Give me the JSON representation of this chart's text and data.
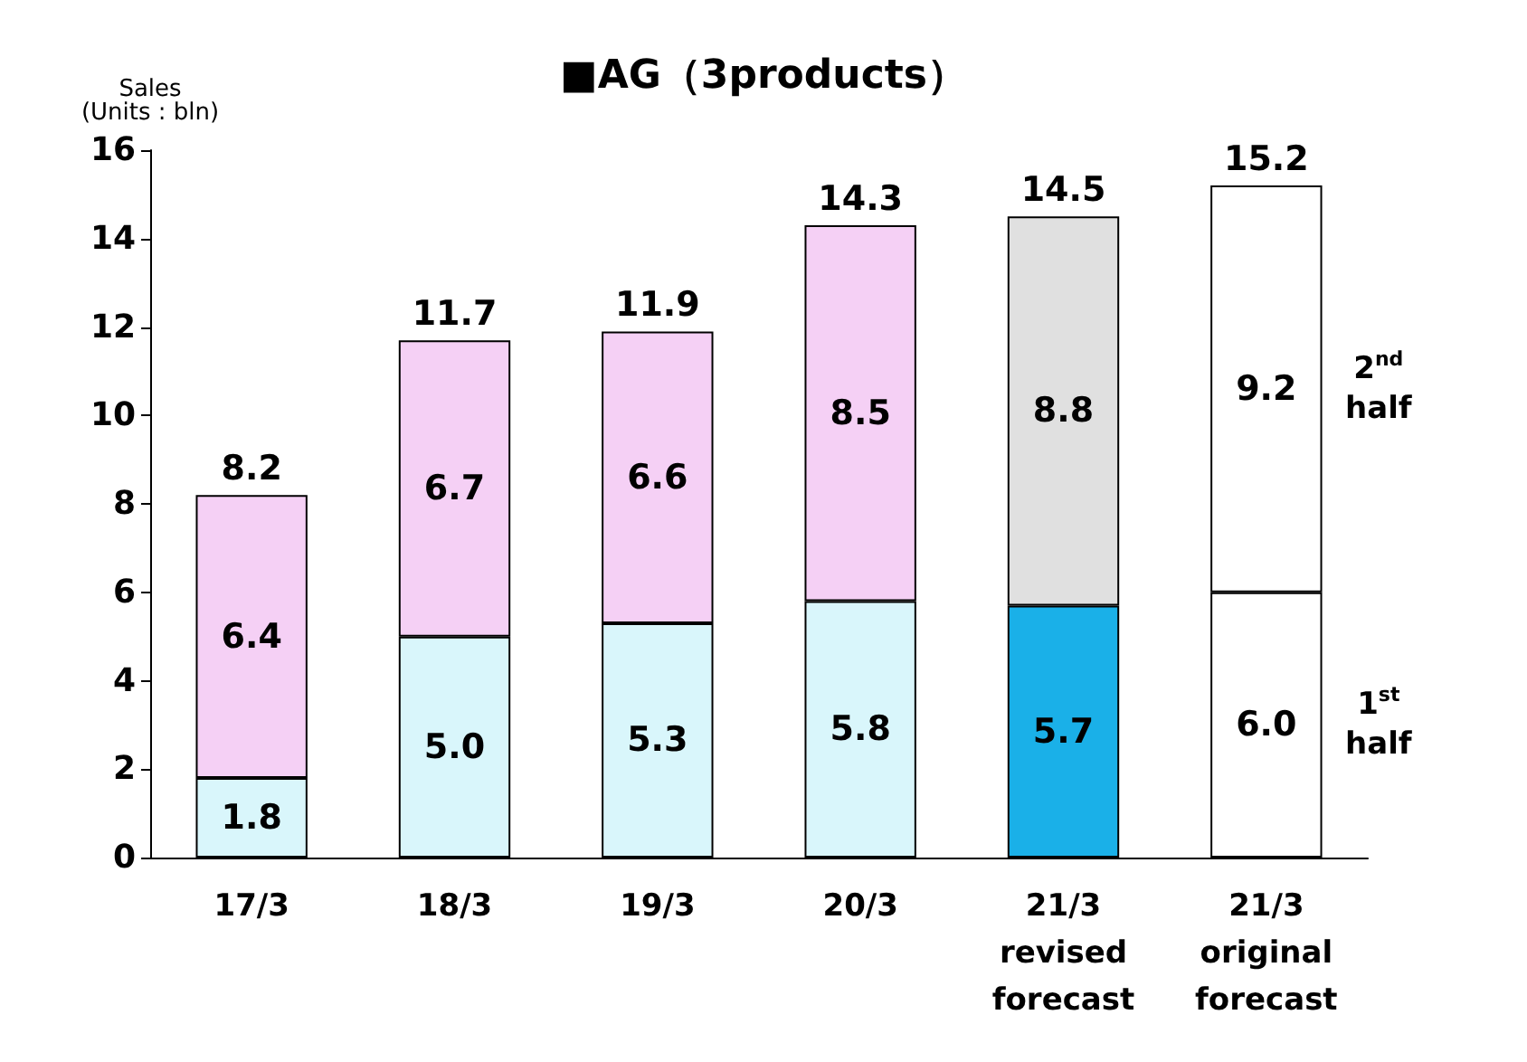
{
  "chart_data": {
    "type": "bar",
    "stacked": true,
    "title": "■AG（3products）",
    "ylabel": "Sales\n(Units : bln)",
    "categories": [
      "17/3",
      "18/3",
      "19/3",
      "20/3",
      "21/3\nrevised\nforecast",
      "21/3\noriginal\nforecast"
    ],
    "series": [
      {
        "name": "1$^{st}$\nhalf",
        "colors": [
          "#d9f6fb",
          "#d9f6fb",
          "#d9f6fb",
          "#d9f6fb",
          "#1ab0e8",
          "#ffffff"
        ],
        "values": [
          1.8,
          5.0,
          5.3,
          5.8,
          5.7,
          6.0
        ],
        "value_labels": [
          "1.8",
          "5.0",
          "5.3",
          "5.8",
          "5.7",
          "6.0"
        ]
      },
      {
        "name": "2$^{nd}$\nhalf",
        "colors": [
          "#f5d0f5",
          "#f5d0f5",
          "#f5d0f5",
          "#f5d0f5",
          "#e0e0e0",
          "#ffffff"
        ],
        "values": [
          6.4,
          6.7,
          6.6,
          8.5,
          8.8,
          9.2
        ],
        "value_labels": [
          "6.4",
          "6.7",
          "6.6",
          "8.5",
          "8.8",
          "9.2"
        ]
      }
    ],
    "totals": [
      "8.2",
      "11.7",
      "11.9",
      "14.3",
      "14.5",
      "15.2"
    ],
    "ylim": [
      0,
      16
    ],
    "yticks": [
      0,
      2,
      4,
      6,
      8,
      10,
      12,
      14,
      16
    ],
    "grid": false,
    "legend": false
  }
}
